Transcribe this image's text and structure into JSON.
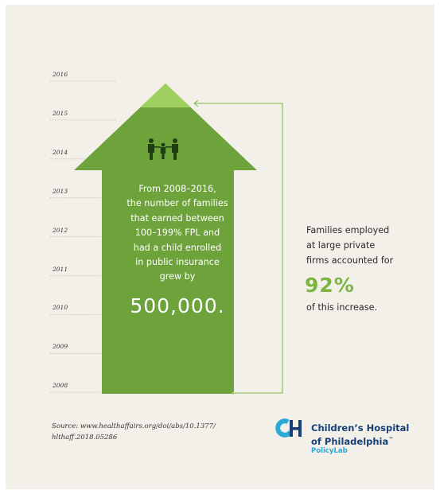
{
  "chart_data": {
    "type": "area",
    "title": "",
    "x_axis": "years",
    "years": [
      "2016",
      "2015",
      "2014",
      "2013",
      "2012",
      "2011",
      "2010",
      "2009",
      "2008"
    ],
    "range": [
      "2008",
      "2016"
    ],
    "main_text": "From 2008–2016, the number of families that earned between 100–199% FPL and had a child enrolled in public insurance grew by",
    "main_value": "500,000.",
    "callout_text": "Families employed at large private firms accounted for",
    "callout_value": "92%",
    "callout_suffix": "of this increase."
  },
  "arrow_lines": [
    "From 2008–2016,",
    "the number of families",
    "that earned between",
    "100–199% FPL and",
    "had a child enrolled",
    "in public insurance",
    "grew by"
  ],
  "callout_lines": [
    "Families employed",
    "at large private",
    "firms accounted for"
  ],
  "source_lines": [
    "Source: www.healthaffairs.org/doi/abs/10.1377/",
    "hlthaff.2018.05286"
  ],
  "logo": {
    "mark": "CH",
    "name_lines": [
      "Children’s Hospital",
      "of Philadelphia"
    ],
    "trademark": "™",
    "sub": "PolicyLab"
  },
  "colors": {
    "background": "#f3f0e9",
    "arrow": "#6ea33c",
    "arrow_tip": "#9fd05f",
    "callout_accent": "#7cb542",
    "logo_navy": "#173f78",
    "logo_blue": "#2aa8d6"
  },
  "icons": [
    "family-icon",
    "chop-logo-icon"
  ]
}
